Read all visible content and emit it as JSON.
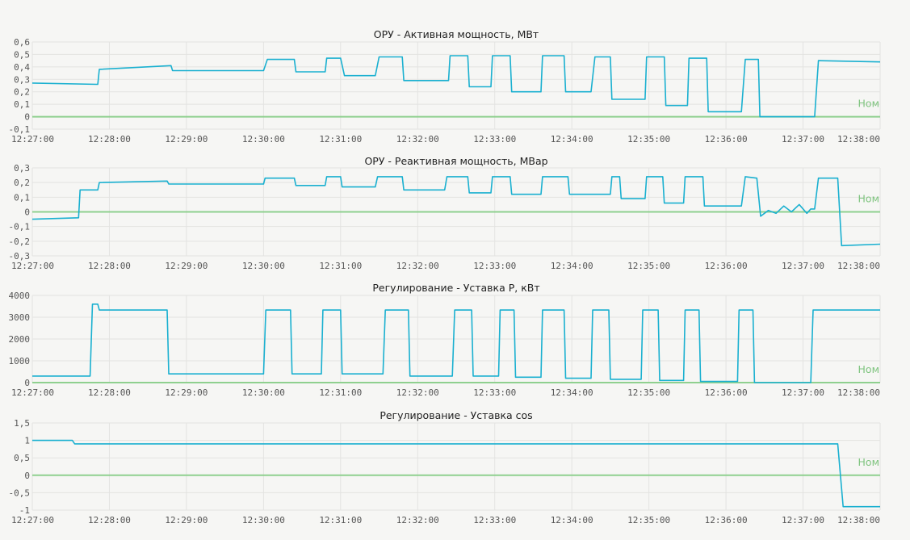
{
  "colors": {
    "series": "#1ab0d0",
    "nominal": "#8fd08f",
    "grid": "#e3e3e1",
    "background": "#f6f6f4"
  },
  "x_tick_labels": [
    "12:27:00",
    "12:28:00",
    "12:29:00",
    "12:30:00",
    "12:31:00",
    "12:32:00",
    "12:33:00",
    "12:34:00",
    "12:35:00",
    "12:36:00",
    "12:37:00",
    "12:38:00"
  ],
  "chart_data": [
    {
      "type": "line",
      "title": "ОРУ - Активная мощность, МВт",
      "x_unit": "minutes since 12:27:00",
      "ylim": [
        -0.1,
        0.6
      ],
      "yticks": [
        -0.1,
        0,
        0.1,
        0.2,
        0.3,
        0.4,
        0.5,
        0.6
      ],
      "ytick_labels": [
        "-0,1",
        "0",
        "0,1",
        "0,2",
        "0,3",
        "0,4",
        "0,5",
        "0,6"
      ],
      "nominal": {
        "label": "Ном",
        "value": 0
      },
      "points": [
        [
          0,
          0.27
        ],
        [
          0.85,
          0.26
        ],
        [
          0.87,
          0.38
        ],
        [
          1.8,
          0.41
        ],
        [
          1.82,
          0.37
        ],
        [
          3.0,
          0.37
        ],
        [
          3.05,
          0.46
        ],
        [
          3.4,
          0.46
        ],
        [
          3.42,
          0.36
        ],
        [
          3.8,
          0.36
        ],
        [
          3.82,
          0.47
        ],
        [
          4.0,
          0.47
        ],
        [
          4.05,
          0.33
        ],
        [
          4.45,
          0.33
        ],
        [
          4.5,
          0.48
        ],
        [
          4.8,
          0.48
        ],
        [
          4.82,
          0.29
        ],
        [
          5.4,
          0.29
        ],
        [
          5.42,
          0.49
        ],
        [
          5.65,
          0.49
        ],
        [
          5.67,
          0.24
        ],
        [
          5.95,
          0.24
        ],
        [
          5.97,
          0.49
        ],
        [
          6.2,
          0.49
        ],
        [
          6.22,
          0.2
        ],
        [
          6.6,
          0.2
        ],
        [
          6.62,
          0.49
        ],
        [
          6.9,
          0.49
        ],
        [
          6.92,
          0.2
        ],
        [
          7.25,
          0.2
        ],
        [
          7.3,
          0.48
        ],
        [
          7.5,
          0.48
        ],
        [
          7.52,
          0.14
        ],
        [
          7.95,
          0.14
        ],
        [
          7.97,
          0.48
        ],
        [
          8.2,
          0.48
        ],
        [
          8.22,
          0.09
        ],
        [
          8.5,
          0.09
        ],
        [
          8.52,
          0.47
        ],
        [
          8.75,
          0.47
        ],
        [
          8.77,
          0.04
        ],
        [
          9.2,
          0.04
        ],
        [
          9.25,
          0.46
        ],
        [
          9.42,
          0.46
        ],
        [
          9.44,
          0.0
        ],
        [
          10.15,
          0.0
        ],
        [
          10.2,
          0.45
        ],
        [
          11.0,
          0.44
        ]
      ]
    },
    {
      "type": "line",
      "title": "ОРУ - Реактивная мощность, МВар",
      "x_unit": "minutes since 12:27:00",
      "ylim": [
        -0.3,
        0.3
      ],
      "yticks": [
        -0.3,
        -0.2,
        -0.1,
        0,
        0.1,
        0.2,
        0.3
      ],
      "ytick_labels": [
        "-0,3",
        "-0,2",
        "-0,1",
        "0",
        "0,1",
        "0,2",
        "0,3"
      ],
      "nominal": {
        "label": "Ном",
        "value": 0
      },
      "points": [
        [
          0,
          -0.05
        ],
        [
          0.6,
          -0.04
        ],
        [
          0.62,
          0.15
        ],
        [
          0.85,
          0.15
        ],
        [
          0.87,
          0.2
        ],
        [
          1.75,
          0.21
        ],
        [
          1.77,
          0.19
        ],
        [
          3.0,
          0.19
        ],
        [
          3.02,
          0.23
        ],
        [
          3.4,
          0.23
        ],
        [
          3.42,
          0.18
        ],
        [
          3.8,
          0.18
        ],
        [
          3.82,
          0.24
        ],
        [
          4.0,
          0.24
        ],
        [
          4.02,
          0.17
        ],
        [
          4.45,
          0.17
        ],
        [
          4.48,
          0.24
        ],
        [
          4.8,
          0.24
        ],
        [
          4.82,
          0.15
        ],
        [
          5.35,
          0.15
        ],
        [
          5.38,
          0.24
        ],
        [
          5.65,
          0.24
        ],
        [
          5.67,
          0.13
        ],
        [
          5.95,
          0.13
        ],
        [
          5.97,
          0.24
        ],
        [
          6.2,
          0.24
        ],
        [
          6.22,
          0.12
        ],
        [
          6.6,
          0.12
        ],
        [
          6.62,
          0.24
        ],
        [
          6.95,
          0.24
        ],
        [
          6.97,
          0.12
        ],
        [
          7.5,
          0.12
        ],
        [
          7.52,
          0.24
        ],
        [
          7.62,
          0.24
        ],
        [
          7.64,
          0.09
        ],
        [
          7.95,
          0.09
        ],
        [
          7.97,
          0.24
        ],
        [
          8.18,
          0.24
        ],
        [
          8.2,
          0.06
        ],
        [
          8.45,
          0.06
        ],
        [
          8.47,
          0.24
        ],
        [
          8.7,
          0.24
        ],
        [
          8.72,
          0.04
        ],
        [
          9.2,
          0.04
        ],
        [
          9.25,
          0.24
        ],
        [
          9.4,
          0.23
        ],
        [
          9.45,
          -0.03
        ],
        [
          9.55,
          0.01
        ],
        [
          9.65,
          -0.01
        ],
        [
          9.75,
          0.04
        ],
        [
          9.85,
          0.0
        ],
        [
          9.95,
          0.05
        ],
        [
          10.05,
          -0.01
        ],
        [
          10.1,
          0.02
        ],
        [
          10.15,
          0.02
        ],
        [
          10.2,
          0.23
        ],
        [
          10.45,
          0.23
        ],
        [
          10.5,
          -0.23
        ],
        [
          11.0,
          -0.22
        ]
      ]
    },
    {
      "type": "line",
      "title": "Регулирование - Уставка P, кВт",
      "x_unit": "minutes since 12:27:00",
      "ylim": [
        0,
        4000
      ],
      "yticks": [
        0,
        1000,
        2000,
        3000,
        4000
      ],
      "ytick_labels": [
        "0",
        "1000",
        "2000",
        "3000",
        "4000"
      ],
      "nominal": {
        "label": "Ном",
        "value": 0
      },
      "points": [
        [
          0,
          300
        ],
        [
          0.75,
          300
        ],
        [
          0.78,
          3600
        ],
        [
          0.85,
          3600
        ],
        [
          0.87,
          3330
        ],
        [
          1.75,
          3330
        ],
        [
          1.77,
          400
        ],
        [
          3.0,
          400
        ],
        [
          3.03,
          3330
        ],
        [
          3.35,
          3330
        ],
        [
          3.37,
          400
        ],
        [
          3.75,
          400
        ],
        [
          3.77,
          3330
        ],
        [
          4.0,
          3330
        ],
        [
          4.02,
          400
        ],
        [
          4.55,
          400
        ],
        [
          4.58,
          3330
        ],
        [
          4.88,
          3330
        ],
        [
          4.9,
          300
        ],
        [
          5.45,
          300
        ],
        [
          5.48,
          3330
        ],
        [
          5.7,
          3330
        ],
        [
          5.72,
          300
        ],
        [
          6.05,
          300
        ],
        [
          6.07,
          3330
        ],
        [
          6.25,
          3330
        ],
        [
          6.27,
          250
        ],
        [
          6.6,
          250
        ],
        [
          6.62,
          3330
        ],
        [
          6.9,
          3330
        ],
        [
          6.92,
          200
        ],
        [
          7.25,
          200
        ],
        [
          7.27,
          3330
        ],
        [
          7.48,
          3330
        ],
        [
          7.5,
          150
        ],
        [
          7.9,
          150
        ],
        [
          7.92,
          3330
        ],
        [
          8.12,
          3330
        ],
        [
          8.14,
          100
        ],
        [
          8.45,
          100
        ],
        [
          8.47,
          3330
        ],
        [
          8.65,
          3330
        ],
        [
          8.67,
          50
        ],
        [
          9.15,
          50
        ],
        [
          9.17,
          3330
        ],
        [
          9.35,
          3330
        ],
        [
          9.37,
          0
        ],
        [
          10.1,
          0
        ],
        [
          10.13,
          3330
        ],
        [
          11.0,
          3330
        ]
      ]
    },
    {
      "type": "line",
      "title": "Регулирование - Уставка cos",
      "x_unit": "minutes since 12:27:00",
      "ylim": [
        -1,
        1.5
      ],
      "yticks": [
        -1,
        -0.5,
        0,
        0.5,
        1,
        1.5
      ],
      "ytick_labels": [
        "-1",
        "-0,5",
        "0",
        "0,5",
        "1",
        "1,5"
      ],
      "nominal": {
        "label": "Ном",
        "value": 0
      },
      "points": [
        [
          0,
          1.0
        ],
        [
          0.52,
          1.0
        ],
        [
          0.55,
          0.9
        ],
        [
          10.45,
          0.9
        ],
        [
          10.52,
          -0.9
        ],
        [
          11.0,
          -0.9
        ]
      ]
    }
  ]
}
